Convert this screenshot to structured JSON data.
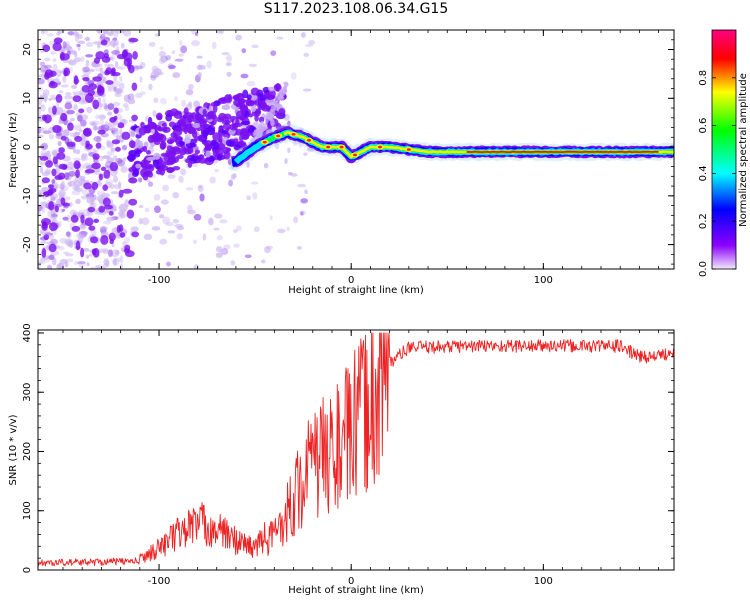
{
  "title": "S117.2023.108.06.34.G15",
  "chart_data": [
    {
      "type": "heatmap",
      "xlabel": "Height of straight line (km)",
      "ylabel": "Frequency (Hz)",
      "xlim": [
        -163,
        168
      ],
      "ylim": [
        -25,
        24
      ],
      "xticks": [
        -100,
        0,
        100
      ],
      "yticks": [
        -20,
        -10,
        0,
        10,
        20
      ],
      "colorbar": {
        "label": "Normalized spectral amplitude",
        "range": [
          0,
          1
        ],
        "ticks": [
          0.0,
          0.2,
          0.4,
          0.6,
          0.8
        ],
        "colors": [
          "#f2e8fb",
          "#8a00ff",
          "#0000ff",
          "#00ffff",
          "#00ff00",
          "#ffff00",
          "#ff0000",
          "#ff0080"
        ]
      },
      "ridge": {
        "x": [
          -60,
          -50,
          -40,
          -33,
          -25,
          -15,
          -5,
          0,
          10,
          20,
          40,
          60,
          100,
          140,
          168
        ],
        "y": [
          -3,
          0,
          2,
          3,
          2,
          0,
          0,
          -2,
          0,
          0,
          -1,
          -1,
          -1,
          -1,
          -1
        ]
      }
    },
    {
      "type": "line",
      "xlabel": "Height of straight line (km)",
      "ylabel": "SNR (10 * v/v)",
      "xlim": [
        -163,
        168
      ],
      "ylim": [
        0,
        405
      ],
      "xticks": [
        -100,
        0,
        100
      ],
      "yticks": [
        0,
        100,
        200,
        300,
        400
      ],
      "color": "#ee2222",
      "envelope": {
        "x": [
          -163,
          -110,
          -100,
          -90,
          -80,
          -70,
          -60,
          -50,
          -40,
          -30,
          -20,
          -10,
          0,
          10,
          20,
          30,
          60,
          100,
          140,
          150,
          160,
          168
        ],
        "y": [
          12,
          15,
          30,
          50,
          65,
          55,
          40,
          30,
          60,
          120,
          180,
          200,
          230,
          280,
          350,
          375,
          378,
          378,
          378,
          360,
          360,
          370
        ]
      }
    }
  ]
}
